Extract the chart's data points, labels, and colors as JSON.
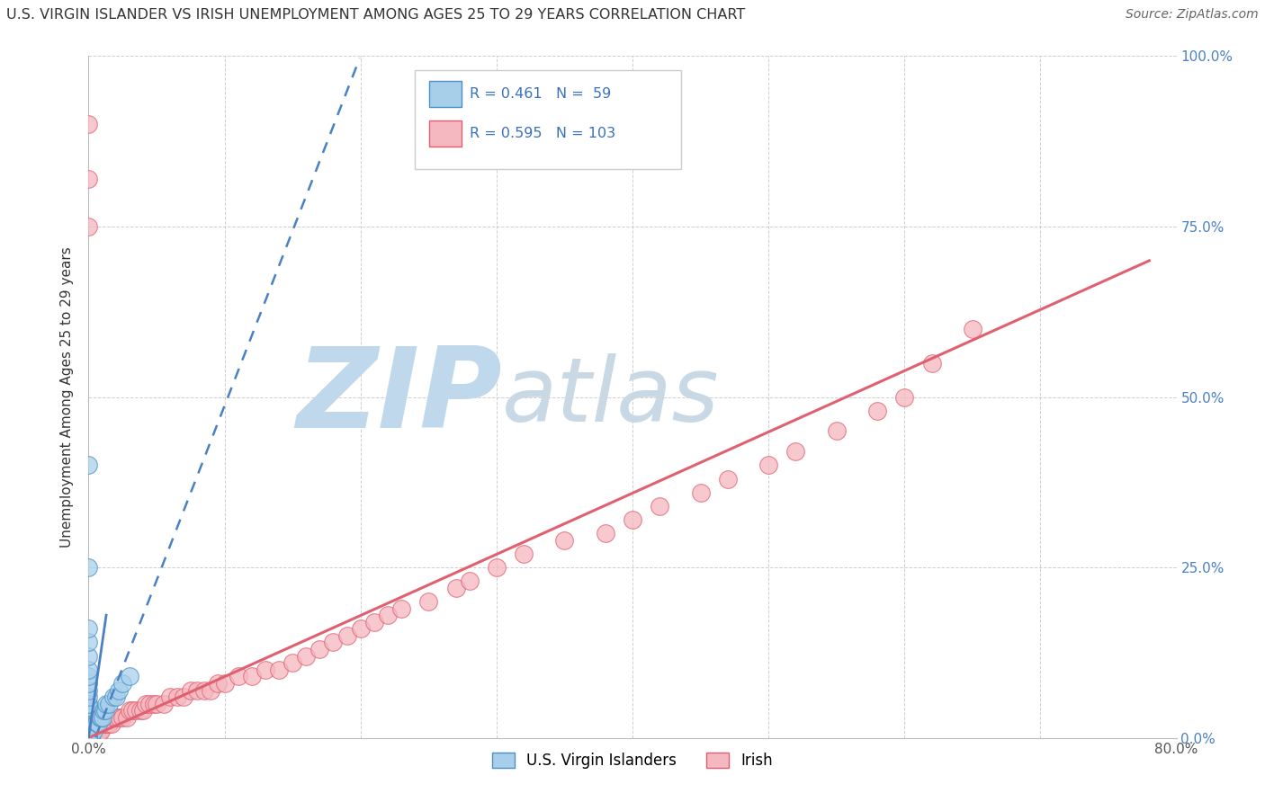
{
  "title": "U.S. VIRGIN ISLANDER VS IRISH UNEMPLOYMENT AMONG AGES 25 TO 29 YEARS CORRELATION CHART",
  "source": "Source: ZipAtlas.com",
  "ylabel": "Unemployment Among Ages 25 to 29 years",
  "xlim": [
    0.0,
    0.8
  ],
  "ylim": [
    0.0,
    1.0
  ],
  "xtick_vals": [
    0.0,
    0.1,
    0.2,
    0.3,
    0.4,
    0.5,
    0.6,
    0.7,
    0.8
  ],
  "xticklabels": [
    "0.0%",
    "",
    "",
    "",
    "",
    "",
    "",
    "",
    "80.0%"
  ],
  "ytick_vals": [
    0.0,
    0.25,
    0.5,
    0.75,
    1.0
  ],
  "yticklabels": [
    "0.0%",
    "25.0%",
    "50.0%",
    "75.0%",
    "100.0%"
  ],
  "vi_R": 0.461,
  "vi_N": 59,
  "irish_R": 0.595,
  "irish_N": 103,
  "vi_color": "#A8CFEA",
  "vi_edge_color": "#4A90C4",
  "vi_line_color": "#4A80C4",
  "irish_color": "#F5B8C0",
  "irish_edge_color": "#E06070",
  "irish_line_color": "#E06070",
  "watermark_zip_color": "#C0D8EC",
  "watermark_atlas_color": "#C8D8E4",
  "legend_label_vi": "U.S. Virgin Islanders",
  "legend_label_irish": "Irish",
  "vi_scatter_x": [
    0.0,
    0.0,
    0.0,
    0.0,
    0.0,
    0.0,
    0.0,
    0.0,
    0.0,
    0.0,
    0.0,
    0.0,
    0.0,
    0.0,
    0.0,
    0.0,
    0.0,
    0.0,
    0.0,
    0.0,
    0.0,
    0.0,
    0.0,
    0.0,
    0.0,
    0.0,
    0.0,
    0.0,
    0.0,
    0.0,
    0.001,
    0.001,
    0.002,
    0.002,
    0.003,
    0.003,
    0.004,
    0.004,
    0.005,
    0.006,
    0.007,
    0.008,
    0.009,
    0.01,
    0.011,
    0.012,
    0.013,
    0.015,
    0.018,
    0.02,
    0.022,
    0.025,
    0.03,
    0.0,
    0.0,
    0.0,
    0.0,
    0.0,
    0.0
  ],
  "vi_scatter_y": [
    0.0,
    0.0,
    0.0,
    0.0,
    0.0,
    0.0,
    0.0,
    0.0,
    0.0,
    0.0,
    0.01,
    0.01,
    0.01,
    0.02,
    0.02,
    0.02,
    0.03,
    0.03,
    0.04,
    0.04,
    0.05,
    0.05,
    0.06,
    0.07,
    0.08,
    0.09,
    0.1,
    0.12,
    0.14,
    0.16,
    0.0,
    0.01,
    0.0,
    0.01,
    0.01,
    0.02,
    0.01,
    0.02,
    0.02,
    0.02,
    0.02,
    0.03,
    0.03,
    0.03,
    0.04,
    0.04,
    0.05,
    0.05,
    0.06,
    0.06,
    0.07,
    0.08,
    0.09,
    0.25,
    0.4,
    0.0,
    0.0,
    0.0,
    0.0
  ],
  "irish_scatter_x": [
    0.0,
    0.0,
    0.0,
    0.0,
    0.0,
    0.0,
    0.0,
    0.0,
    0.0,
    0.0,
    0.0,
    0.0,
    0.0,
    0.0,
    0.0,
    0.0,
    0.0,
    0.0,
    0.0,
    0.0,
    0.001,
    0.002,
    0.003,
    0.004,
    0.005,
    0.006,
    0.007,
    0.008,
    0.009,
    0.01,
    0.011,
    0.012,
    0.014,
    0.015,
    0.017,
    0.018,
    0.02,
    0.022,
    0.025,
    0.028,
    0.03,
    0.032,
    0.035,
    0.038,
    0.04,
    0.042,
    0.045,
    0.048,
    0.05,
    0.055,
    0.06,
    0.065,
    0.07,
    0.075,
    0.08,
    0.085,
    0.09,
    0.095,
    0.1,
    0.11,
    0.12,
    0.13,
    0.14,
    0.15,
    0.16,
    0.17,
    0.18,
    0.19,
    0.2,
    0.21,
    0.22,
    0.23,
    0.25,
    0.27,
    0.28,
    0.3,
    0.32,
    0.35,
    0.38,
    0.4,
    0.42,
    0.45,
    0.47,
    0.5,
    0.52,
    0.55,
    0.58,
    0.6,
    0.62,
    0.65,
    0.0,
    0.0,
    0.0,
    0.0,
    0.0,
    0.0,
    0.0,
    0.0,
    0.0,
    0.0,
    0.0,
    0.0,
    0.0
  ],
  "irish_scatter_y": [
    0.0,
    0.0,
    0.0,
    0.0,
    0.0,
    0.0,
    0.0,
    0.0,
    0.0,
    0.0,
    0.0,
    0.0,
    0.0,
    0.0,
    0.0,
    0.01,
    0.01,
    0.01,
    0.01,
    0.02,
    0.0,
    0.0,
    0.0,
    0.0,
    0.0,
    0.01,
    0.01,
    0.01,
    0.01,
    0.02,
    0.02,
    0.02,
    0.02,
    0.02,
    0.02,
    0.03,
    0.03,
    0.03,
    0.03,
    0.03,
    0.04,
    0.04,
    0.04,
    0.04,
    0.04,
    0.05,
    0.05,
    0.05,
    0.05,
    0.05,
    0.06,
    0.06,
    0.06,
    0.07,
    0.07,
    0.07,
    0.07,
    0.08,
    0.08,
    0.09,
    0.09,
    0.1,
    0.1,
    0.11,
    0.12,
    0.13,
    0.14,
    0.15,
    0.16,
    0.17,
    0.18,
    0.19,
    0.2,
    0.22,
    0.23,
    0.25,
    0.27,
    0.29,
    0.3,
    0.32,
    0.34,
    0.36,
    0.38,
    0.4,
    0.42,
    0.45,
    0.48,
    0.5,
    0.55,
    0.6,
    0.0,
    0.0,
    0.0,
    0.0,
    0.0,
    0.0,
    0.0,
    0.0,
    0.0,
    0.0,
    0.75,
    0.82,
    0.9
  ]
}
